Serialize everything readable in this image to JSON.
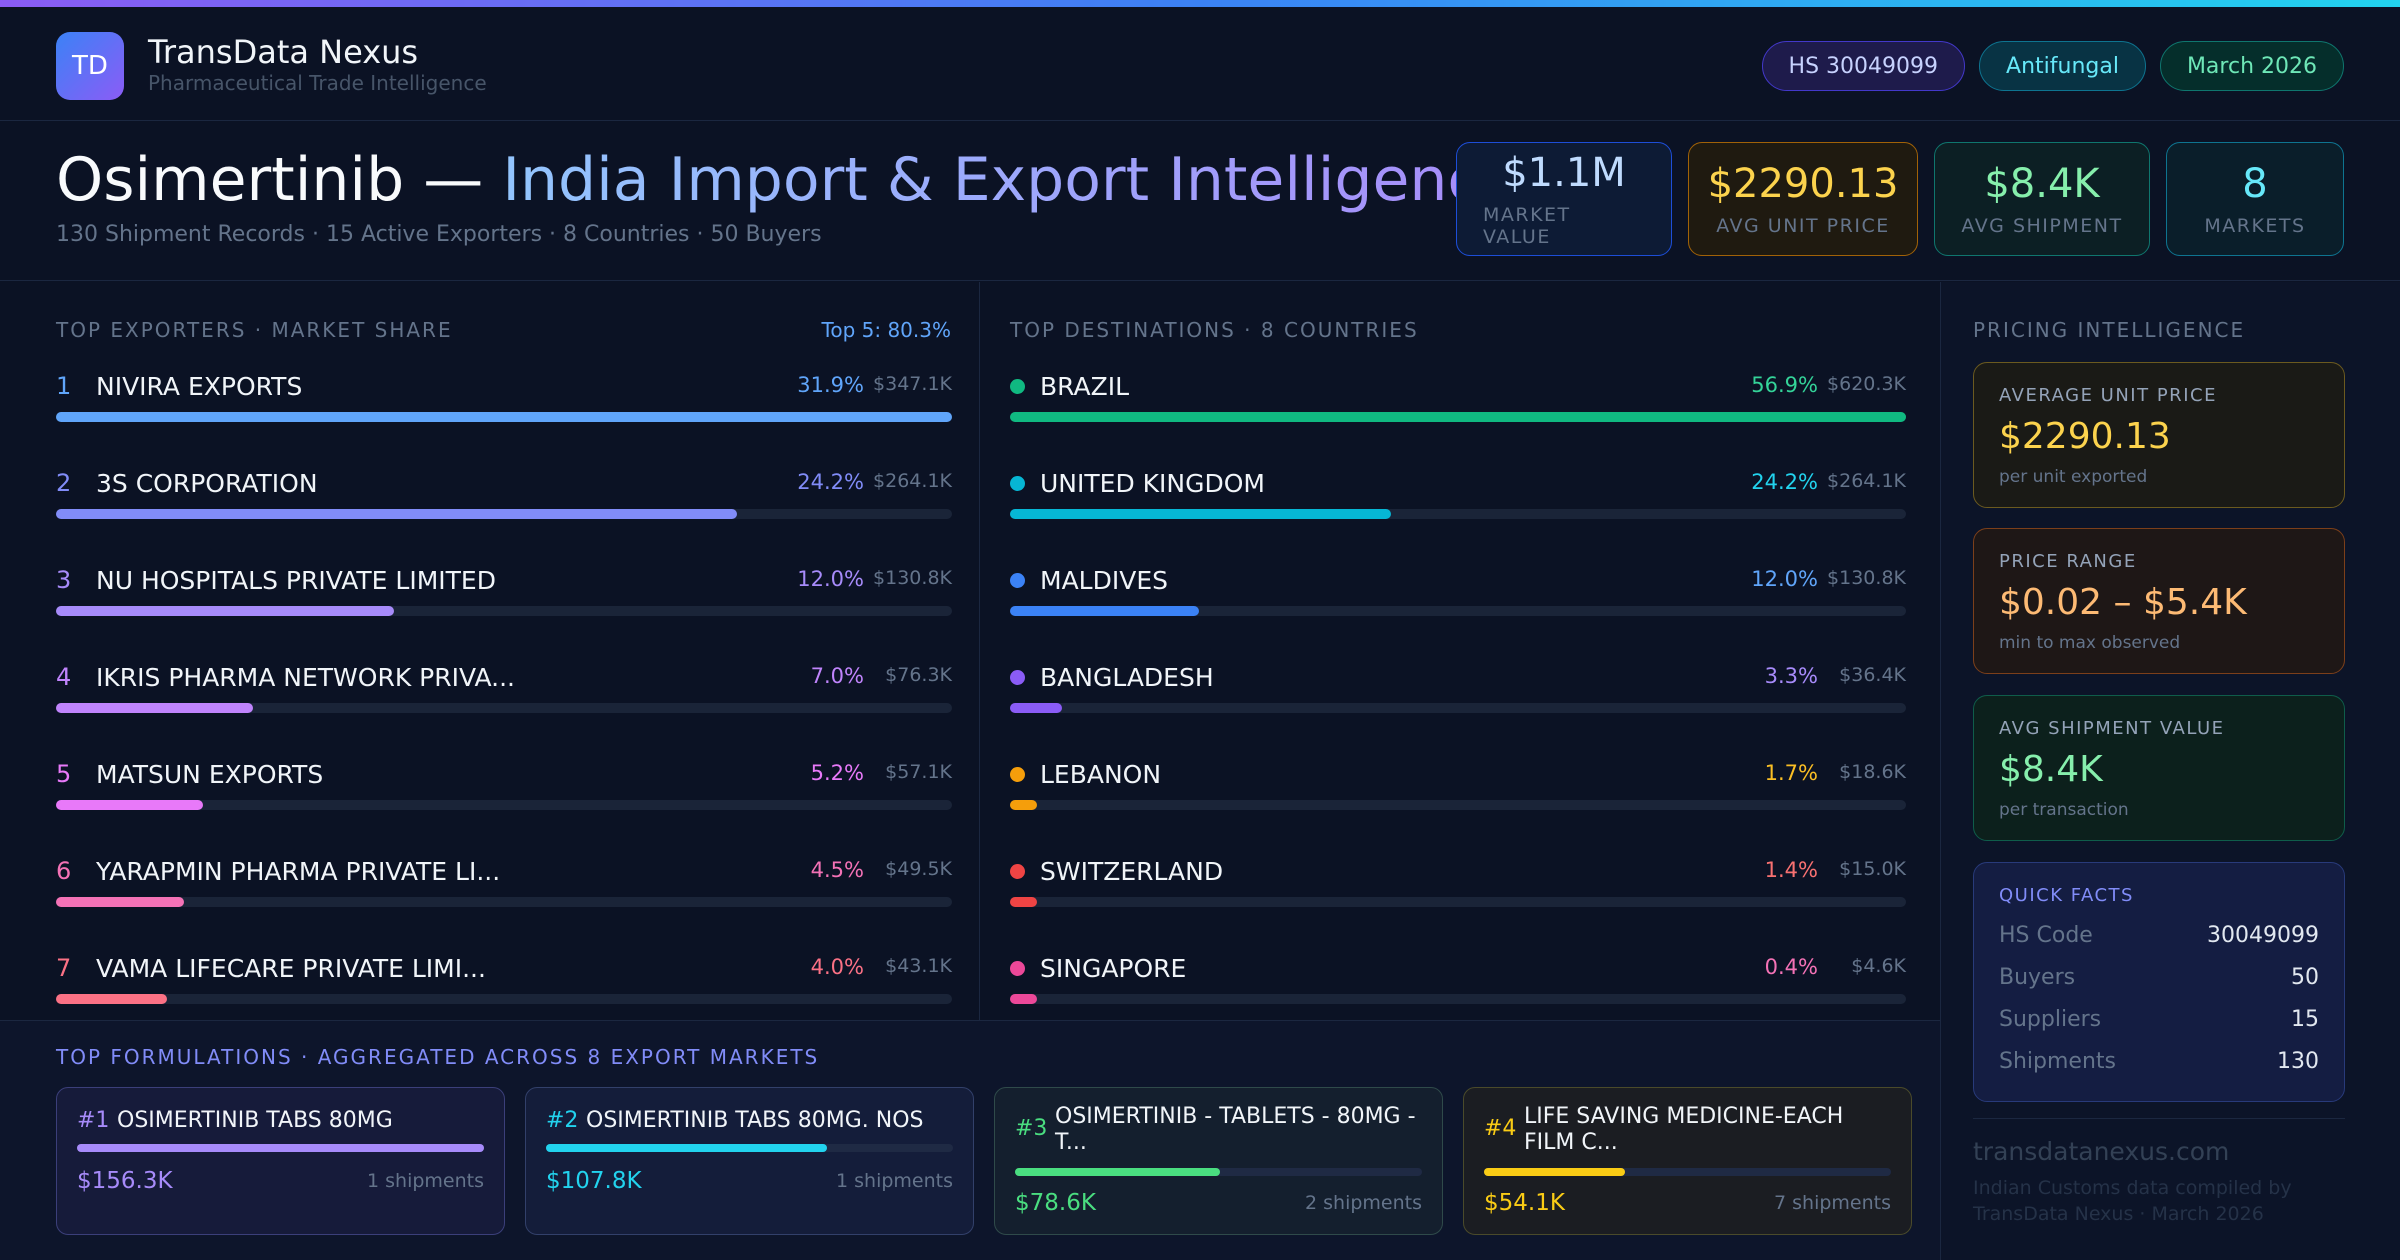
{
  "brand": {
    "logo": "TD",
    "name": "TransData Nexus",
    "subtitle": "Pharmaceutical Trade Intelligence"
  },
  "tags": [
    "HS 30049099",
    "Antifungal",
    "March 2026"
  ],
  "hero": {
    "title_main": "Osimertinib",
    "title_dash": " — ",
    "title_accent": "India Import & Export Intelligence",
    "subtitle": "130 Shipment Records · 15 Active Exporters · 8 Countries · 50 Buyers"
  },
  "stats": [
    {
      "value": "$1.1M",
      "label": "MARKET VALUE"
    },
    {
      "value": "$2290.13",
      "label": "AVG UNIT PRICE"
    },
    {
      "value": "$8.4K",
      "label": "AVG SHIPMENT"
    },
    {
      "value": "8",
      "label": "MARKETS"
    }
  ],
  "exporters": {
    "label": "TOP EXPORTERS · MARKET SHARE",
    "top_note": "Top 5: 80.3%",
    "items": [
      {
        "rank": "1",
        "name": "NIVIRA EXPORTS",
        "pct": "31.9%",
        "amount": "$347.1K",
        "share": 1.0,
        "color": "#60a5fa"
      },
      {
        "rank": "2",
        "name": "3S CORPORATION",
        "pct": "24.2%",
        "amount": "$264.1K",
        "share": 0.76,
        "color": "#818cf8"
      },
      {
        "rank": "3",
        "name": "NU HOSPITALS PRIVATE LIMITED",
        "pct": "12.0%",
        "amount": "$130.8K",
        "share": 0.377,
        "color": "#a78bfa"
      },
      {
        "rank": "4",
        "name": "IKRIS PHARMA NETWORK PRIVA...",
        "pct": "7.0%",
        "amount": "$76.3K",
        "share": 0.22,
        "color": "#c084fc"
      },
      {
        "rank": "5",
        "name": "MATSUN EXPORTS",
        "pct": "5.2%",
        "amount": "$57.1K",
        "share": 0.164,
        "color": "#e879f9"
      },
      {
        "rank": "6",
        "name": "YARAPMIN PHARMA PRIVATE LI...",
        "pct": "4.5%",
        "amount": "$49.5K",
        "share": 0.143,
        "color": "#f472b6"
      },
      {
        "rank": "7",
        "name": "VAMA LIFECARE PRIVATE LIMI...",
        "pct": "4.0%",
        "amount": "$43.1K",
        "share": 0.124,
        "color": "#fb7185"
      }
    ]
  },
  "destinations": {
    "label": "TOP DESTINATIONS · 8 COUNTRIES",
    "items": [
      {
        "name": "BRAZIL",
        "pct": "56.9%",
        "amount": "$620.3K",
        "share": 1.0,
        "color": "#10b981",
        "pct_color": "#34d399"
      },
      {
        "name": "UNITED KINGDOM",
        "pct": "24.2%",
        "amount": "$264.1K",
        "share": 0.425,
        "color": "#06b6d4",
        "pct_color": "#22d3ee"
      },
      {
        "name": "MALDIVES",
        "pct": "12.0%",
        "amount": "$130.8K",
        "share": 0.211,
        "color": "#3b82f6",
        "pct_color": "#60a5fa"
      },
      {
        "name": "BANGLADESH",
        "pct": "3.3%",
        "amount": "$36.4K",
        "share": 0.058,
        "color": "#8b5cf6",
        "pct_color": "#a78bfa"
      },
      {
        "name": "LEBANON",
        "pct": "1.7%",
        "amount": "$18.6K",
        "share": 0.03,
        "color": "#f59e0b",
        "pct_color": "#fbbf24"
      },
      {
        "name": "SWITZERLAND",
        "pct": "1.4%",
        "amount": "$15.0K",
        "share": 0.03,
        "color": "#ef4444",
        "pct_color": "#f87171"
      },
      {
        "name": "SINGAPORE",
        "pct": "0.4%",
        "amount": "$4.6K",
        "share": 0.03,
        "color": "#ec4899",
        "pct_color": "#f472b6"
      }
    ]
  },
  "pricing": {
    "label": "PRICING INTELLIGENCE",
    "cards": [
      {
        "label": "AVERAGE UNIT PRICE",
        "value": "$2290.13",
        "sub": "per unit exported"
      },
      {
        "label": "PRICE RANGE",
        "value": "$0.02 – $5.4K",
        "sub": "min to max observed"
      },
      {
        "label": "AVG SHIPMENT VALUE",
        "value": "$8.4K",
        "sub": "per transaction"
      }
    ],
    "facts": {
      "label": "QUICK FACTS",
      "items": [
        {
          "key": "HS Code",
          "value": "30049099"
        },
        {
          "key": "Buyers",
          "value": "50"
        },
        {
          "key": "Suppliers",
          "value": "15"
        },
        {
          "key": "Shipments",
          "value": "130"
        }
      ]
    },
    "site": "transdatanexus.com",
    "site_note": "Indian Customs data compiled by TransData Nexus · March 2026"
  },
  "formulations": {
    "label": "TOP FORMULATIONS · AGGREGATED ACROSS 8 EXPORT MARKETS",
    "items": [
      {
        "num": "#1",
        "name": "OSIMERTINIB TABS 80MG",
        "value": "$156.3K",
        "shipments": "1 shipments",
        "share": 1.0,
        "color": "#a78bfa",
        "num_color": "#a78bfa"
      },
      {
        "num": "#2",
        "name": "OSIMERTINIB TABS 80MG. NOS",
        "value": "$107.8K",
        "shipments": "1 shipments",
        "share": 0.69,
        "color": "#22d3ee",
        "num_color": "#22d3ee"
      },
      {
        "num": "#3",
        "name": "OSIMERTINIB - TABLETS - 80MG - T...",
        "value": "$78.6K",
        "shipments": "2 shipments",
        "share": 0.503,
        "color": "#4ade80",
        "num_color": "#4ade80"
      },
      {
        "num": "#4",
        "name": "LIFE SAVING MEDICINE-EACH FILM C...",
        "value": "$54.1K",
        "shipments": "7 shipments",
        "share": 0.346,
        "color": "#facc15",
        "num_color": "#facc15"
      }
    ]
  }
}
